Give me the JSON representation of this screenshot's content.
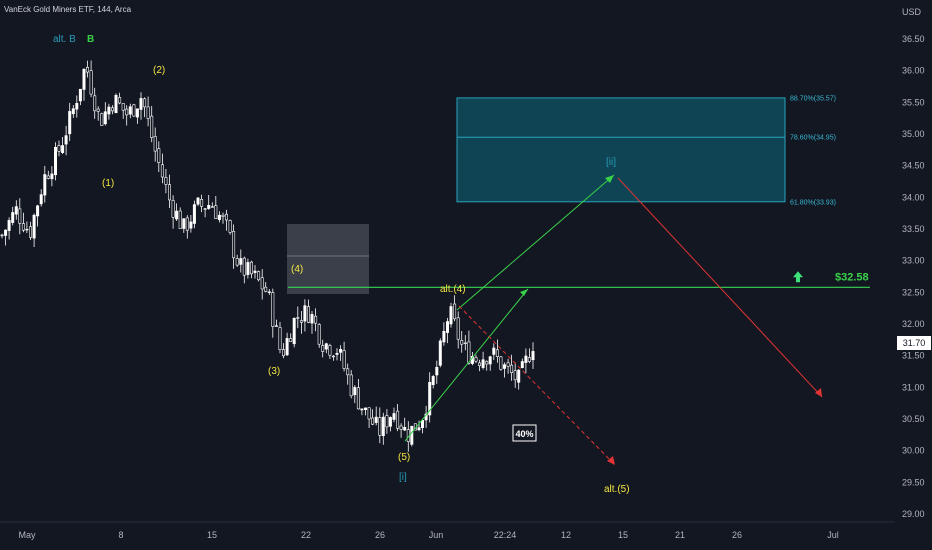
{
  "header": {
    "title": "VanEck Gold Miners ETF, 144, Arca"
  },
  "colors": {
    "background": "#131722",
    "candle": "#ffffff",
    "wave_yellow": "#f5e642",
    "wave_teal": "#2a9bb8",
    "wave_green": "#3ad14a",
    "level_line": "#39d353",
    "up_arrow": "#3ee07c",
    "down_arrow": "#e03434",
    "fib_fill": "#0e4c5c",
    "fib_border": "#29a3bd",
    "fib_text": "#39b6d2",
    "gray_box": "#4a4d57",
    "axis_text": "#b2b5be"
  },
  "chart_data": {
    "type": "candlestick",
    "title": "VanEck Gold Miners ETF, 144, Arca",
    "currency": "USD",
    "y_axis": {
      "ticks": [
        "36.50",
        "36.00",
        "35.50",
        "35.00",
        "34.50",
        "34.00",
        "33.50",
        "33.00",
        "32.50",
        "32.00",
        "31.50",
        "31.00",
        "30.50",
        "30.00",
        "29.50",
        "29.00"
      ],
      "ylim": [
        28.9,
        36.65
      ],
      "last_price": "31.70"
    },
    "x_axis": {
      "ticks": [
        "May",
        "8",
        "15",
        "22",
        "26",
        "Jun",
        "22:24",
        "12",
        "15",
        "21",
        "26",
        "Jul"
      ]
    },
    "price_path": [
      [
        "May 1",
        33.4
      ],
      [
        "May 2",
        33.8
      ],
      [
        "May 3",
        33.45
      ],
      [
        "May 4",
        34.3
      ],
      [
        "May 5",
        34.7
      ],
      [
        "May 6",
        35.3
      ],
      [
        "May 7",
        36.1
      ],
      [
        "May 8",
        35.2
      ],
      [
        "May 9",
        35.55
      ],
      [
        "May 10",
        35.3
      ],
      [
        "May 11",
        35.6
      ],
      [
        "May 12",
        34.7
      ],
      [
        "May 13",
        33.95
      ],
      [
        "May 14",
        33.5
      ],
      [
        "May 15",
        33.85
      ],
      [
        "May 16",
        33.9
      ],
      [
        "May 17",
        33.55
      ],
      [
        "May 18",
        32.9
      ],
      [
        "May 19",
        32.75
      ],
      [
        "May 20",
        32.5
      ],
      [
        "May 21",
        31.5
      ],
      [
        "May 22",
        32.1
      ],
      [
        "May 23",
        32.2
      ],
      [
        "May 24",
        31.7
      ],
      [
        "May 25",
        31.6
      ],
      [
        "May 26",
        31.0
      ],
      [
        "May 27",
        30.6
      ],
      [
        "May 28",
        30.3
      ],
      [
        "May 29",
        30.65
      ],
      [
        "May 30",
        30.25
      ],
      [
        "May 31",
        30.5
      ],
      [
        "Jun 1",
        31.2
      ],
      [
        "Jun 2",
        32.2
      ],
      [
        "Jun 3",
        31.6
      ],
      [
        "Jun 4",
        31.45
      ],
      [
        "Jun 5",
        31.55
      ],
      [
        "Jun 6",
        31.3
      ],
      [
        "Jun 7",
        31.1
      ],
      [
        "Jun 8",
        31.7
      ]
    ],
    "horizontal_level": {
      "value": 32.58,
      "label": "$32.58"
    },
    "fibonacci_zone": [
      {
        "label": "88.70%(35.57)",
        "value": 35.57
      },
      {
        "label": "78.60%(34.95)",
        "value": 34.95
      },
      {
        "label": "61.80%(33.93)",
        "value": 33.93
      }
    ],
    "wave_labels": [
      {
        "text": "alt. B",
        "color": "teal"
      },
      {
        "text": "B",
        "color": "green"
      },
      {
        "text": "(2)",
        "color": "yellow"
      },
      {
        "text": "(1)",
        "color": "yellow"
      },
      {
        "text": "(4)",
        "color": "yellow"
      },
      {
        "text": "(3)",
        "color": "yellow"
      },
      {
        "text": "alt.(4)",
        "color": "yellow"
      },
      {
        "text": "(5)",
        "color": "yellow"
      },
      {
        "text": "[i]",
        "color": "teal"
      },
      {
        "text": "[ii]",
        "color": "teal"
      },
      {
        "text": "alt.(5)",
        "color": "yellow"
      }
    ],
    "annotations": [
      {
        "text": "40%"
      }
    ],
    "legend": "none",
    "grid": false
  }
}
